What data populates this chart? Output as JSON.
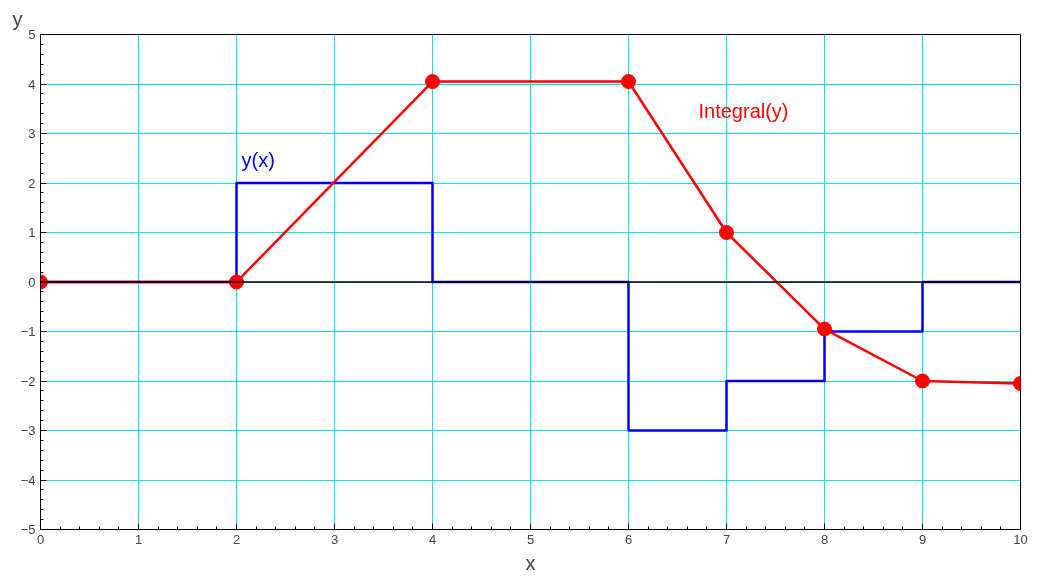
{
  "chart_data": {
    "type": "line",
    "xlabel": "x",
    "ylabel": "y",
    "xlim": [
      0,
      10
    ],
    "ylim": [
      -5,
      5
    ],
    "xticks": [
      0,
      1,
      2,
      3,
      4,
      5,
      6,
      7,
      8,
      9,
      10
    ],
    "yticks": [
      -5,
      -4,
      -3,
      -2,
      -1,
      0,
      1,
      2,
      3,
      4,
      5
    ],
    "grid": true,
    "line_style": "solid",
    "ref_lines": [
      {
        "axis": "y",
        "value": 0,
        "color": "#000000"
      }
    ],
    "series": [
      {
        "name": "y(x)",
        "type": "step",
        "color": "#0000ff",
        "marker": "none",
        "x": [
          0,
          2,
          4,
          6,
          7,
          8,
          9,
          10
        ],
        "values": [
          0,
          2,
          0,
          -3,
          -2,
          -1,
          0,
          0
        ]
      },
      {
        "name": "Integral(y)",
        "color": "#ff0000",
        "marker": "circle",
        "x": [
          0,
          2,
          4,
          6,
          7,
          8,
          9,
          10
        ],
        "values": [
          0,
          0,
          4.05,
          4.05,
          1,
          -0.95,
          -2,
          -2.05
        ]
      }
    ]
  }
}
